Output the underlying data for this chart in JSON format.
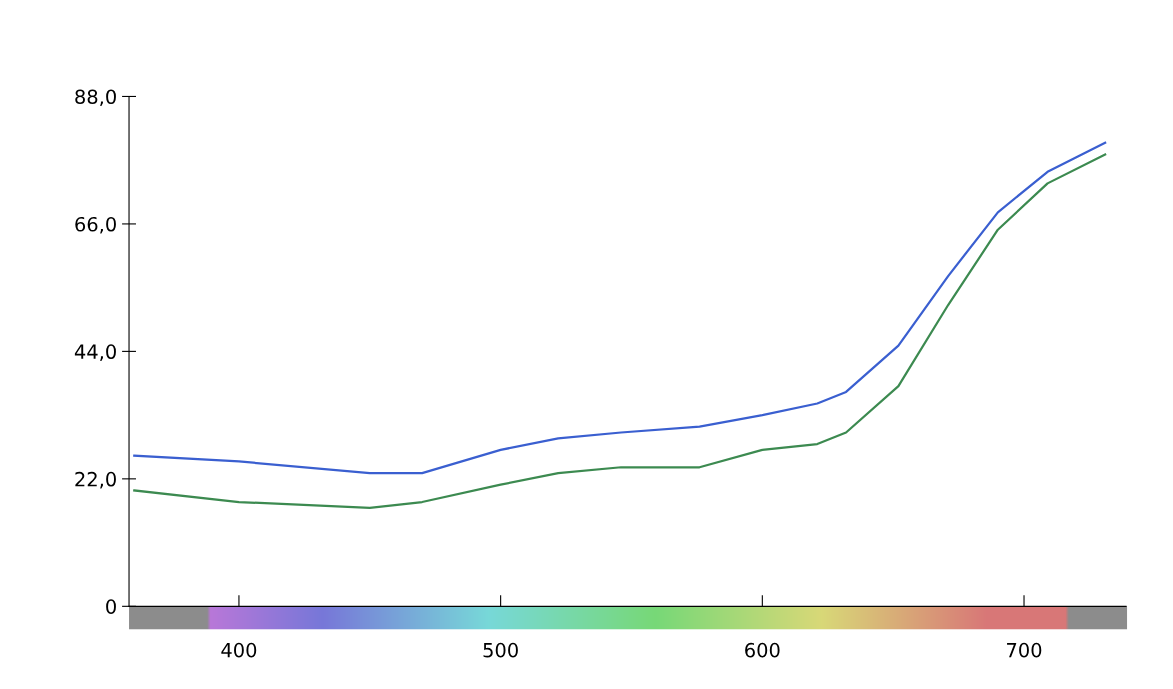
{
  "chart_data": {
    "type": "line",
    "x": [
      360,
      400,
      450,
      470,
      500,
      522,
      546,
      576,
      600,
      621,
      632,
      652,
      671,
      690,
      709,
      731
    ],
    "series": [
      {
        "color": "#3a5fd0",
        "values": [
          26,
          25,
          23,
          23,
          27,
          29,
          30,
          31,
          33,
          35,
          37,
          45,
          57,
          68,
          75,
          80
        ]
      },
      {
        "color": "#3c8a50",
        "values": [
          20,
          18,
          17,
          18,
          21,
          23,
          24,
          24,
          27,
          28,
          30,
          38,
          52,
          65,
          73,
          78
        ]
      }
    ],
    "xlim": [
      358,
      739
    ],
    "xticks": [
      400,
      500,
      600,
      700
    ],
    "ylim": [
      0,
      88
    ],
    "yticks": [
      0,
      {
        "value": 22,
        "label": "22,0"
      },
      {
        "value": 44,
        "label": "44,0"
      },
      {
        "value": 66,
        "label": "66,0"
      },
      {
        "value": 88,
        "label": "88,0"
      }
    ],
    "grid": false,
    "line_style": "solid",
    "marker": "none"
  }
}
